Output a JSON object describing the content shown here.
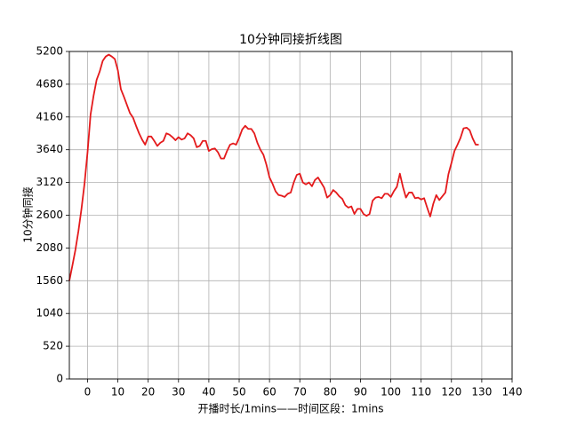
{
  "chart_data": {
    "type": "line",
    "title": "10分钟同接折线图",
    "x_label": "开播时长/1mins——时间区段：1mins",
    "y_label": "10分钟同接",
    "x": [
      -6,
      -5,
      -4,
      -3,
      -2,
      -1,
      0,
      1,
      2,
      3,
      4,
      5,
      6,
      7,
      8,
      9,
      10,
      11,
      12,
      13,
      14,
      15,
      16,
      17,
      18,
      19,
      20,
      21,
      22,
      23,
      24,
      25,
      26,
      27,
      28,
      29,
      30,
      31,
      32,
      33,
      34,
      35,
      36,
      37,
      38,
      39,
      40,
      41,
      42,
      43,
      44,
      45,
      46,
      47,
      48,
      49,
      50,
      51,
      52,
      53,
      54,
      55,
      56,
      57,
      58,
      59,
      60,
      61,
      62,
      63,
      64,
      65,
      66,
      67,
      68,
      69,
      70,
      71,
      72,
      73,
      74,
      75,
      76,
      77,
      78,
      79,
      80,
      81,
      82,
      83,
      84,
      85,
      86,
      87,
      88,
      89,
      90,
      91,
      92,
      93,
      94,
      95,
      96,
      97,
      98,
      99,
      100,
      101,
      102,
      103,
      104,
      105,
      106,
      107,
      108,
      109,
      110,
      111,
      112,
      113,
      114,
      115,
      116,
      117,
      118,
      119,
      120,
      121,
      122,
      123,
      124,
      125,
      126,
      127,
      128,
      129
    ],
    "values": [
      1560,
      1800,
      2050,
      2350,
      2700,
      3100,
      3600,
      4200,
      4500,
      4750,
      4880,
      5050,
      5120,
      5150,
      5120,
      5080,
      4900,
      4600,
      4480,
      4350,
      4220,
      4150,
      4020,
      3900,
      3800,
      3720,
      3850,
      3850,
      3780,
      3700,
      3750,
      3780,
      3900,
      3880,
      3840,
      3790,
      3840,
      3800,
      3820,
      3900,
      3870,
      3820,
      3680,
      3700,
      3780,
      3780,
      3620,
      3650,
      3660,
      3600,
      3500,
      3500,
      3620,
      3720,
      3740,
      3720,
      3830,
      3960,
      4020,
      3970,
      3970,
      3900,
      3750,
      3640,
      3560,
      3400,
      3200,
      3100,
      2980,
      2920,
      2910,
      2890,
      2940,
      2960,
      3120,
      3240,
      3260,
      3120,
      3090,
      3120,
      3060,
      3160,
      3200,
      3120,
      3040,
      2880,
      2920,
      3000,
      2960,
      2900,
      2860,
      2760,
      2720,
      2740,
      2620,
      2700,
      2700,
      2620,
      2590,
      2620,
      2830,
      2880,
      2890,
      2870,
      2940,
      2940,
      2890,
      2980,
      3050,
      3260,
      3050,
      2880,
      2960,
      2960,
      2870,
      2880,
      2850,
      2870,
      2720,
      2580,
      2780,
      2920,
      2840,
      2900,
      2960,
      3250,
      3430,
      3620,
      3720,
      3830,
      3980,
      3990,
      3950,
      3820,
      3720,
      3720
    ],
    "color": "#e41a1c",
    "xlim": [
      -6,
      140
    ],
    "xticks": [
      0,
      10,
      20,
      30,
      40,
      50,
      60,
      70,
      80,
      90,
      100,
      110,
      120,
      130,
      140
    ],
    "ylim": [
      0,
      5200
    ],
    "yticks": [
      0,
      520,
      1040,
      1560,
      2080,
      2600,
      3120,
      3640,
      4160,
      4680,
      5200
    ],
    "grid": true
  }
}
